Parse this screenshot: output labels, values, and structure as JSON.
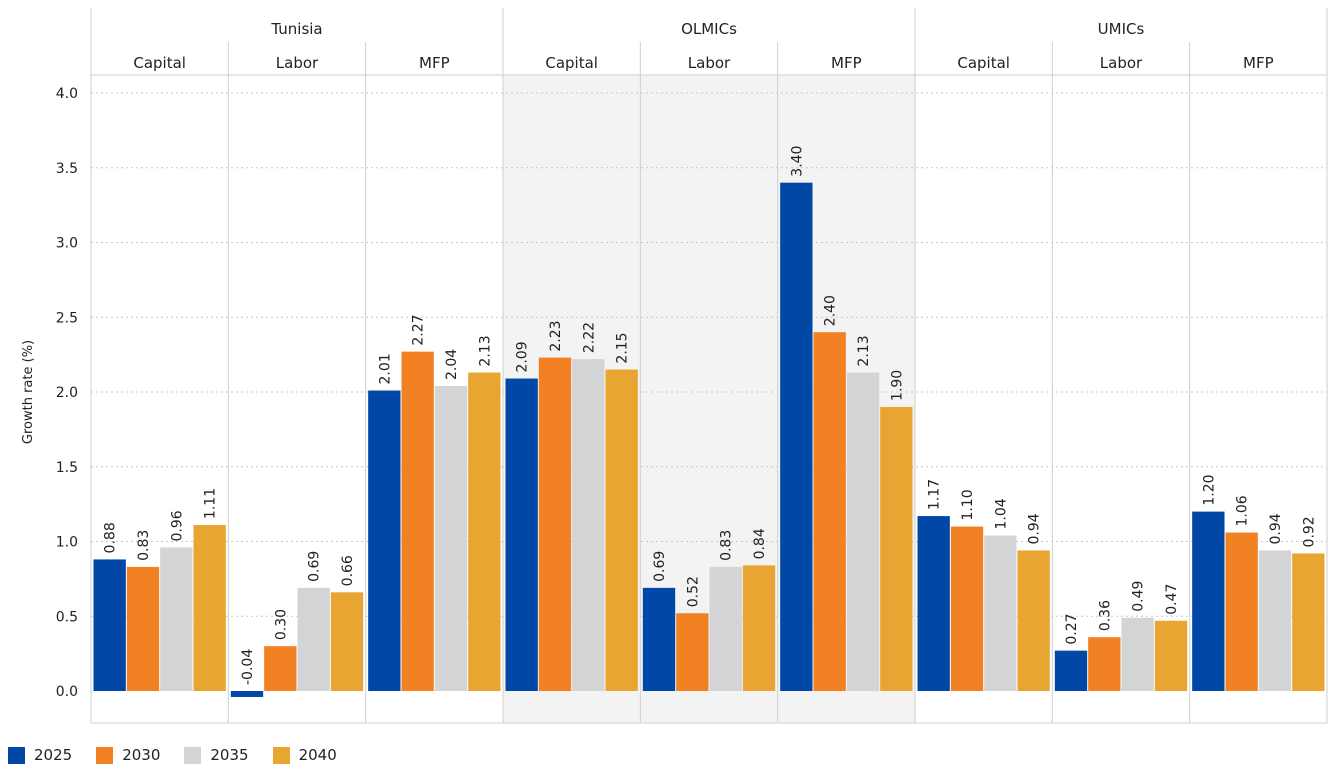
{
  "chart_data": {
    "type": "bar",
    "ylabel": "Growth rate (%)",
    "ylim": [
      0,
      4.0
    ],
    "yticks": [
      "0.0",
      "0.5",
      "1.0",
      "1.5",
      "2.0",
      "2.5",
      "3.0",
      "3.5",
      "4.0"
    ],
    "grid": true,
    "legend_placement": "bottom-left",
    "groups": [
      {
        "name": "Tunisia",
        "shaded": false,
        "categories": [
          {
            "name": "Capital",
            "values": [
              0.88,
              0.83,
              0.96,
              1.11
            ],
            "labels": [
              "0.88",
              "0.83",
              "0.96",
              "1.11"
            ]
          },
          {
            "name": "Labor",
            "values": [
              -0.04,
              0.3,
              0.69,
              0.66
            ],
            "labels": [
              "-0.04",
              "0.30",
              "0.69",
              "0.66"
            ]
          },
          {
            "name": "MFP",
            "values": [
              2.01,
              2.27,
              2.04,
              2.13
            ],
            "labels": [
              "2.01",
              "2.27",
              "2.04",
              "2.13"
            ]
          }
        ]
      },
      {
        "name": "OLMICs",
        "shaded": true,
        "categories": [
          {
            "name": "Capital",
            "values": [
              2.09,
              2.23,
              2.22,
              2.15
            ],
            "labels": [
              "2.09",
              "2.23",
              "2.22",
              "2.15"
            ]
          },
          {
            "name": "Labor",
            "values": [
              0.69,
              0.52,
              0.83,
              0.84
            ],
            "labels": [
              "0.69",
              "0.52",
              "0.83",
              "0.84"
            ]
          },
          {
            "name": "MFP",
            "values": [
              3.4,
              2.4,
              2.13,
              1.9
            ],
            "labels": [
              "3.40",
              "2.40",
              "2.13",
              "1.90"
            ]
          }
        ]
      },
      {
        "name": "UMICs",
        "shaded": false,
        "categories": [
          {
            "name": "Capital",
            "values": [
              1.17,
              1.1,
              1.04,
              0.94
            ],
            "labels": [
              "1.17",
              "1.10",
              "1.04",
              "0.94"
            ]
          },
          {
            "name": "Labor",
            "values": [
              0.27,
              0.36,
              0.49,
              0.47
            ],
            "labels": [
              "0.27",
              "0.36",
              "0.49",
              "0.47"
            ]
          },
          {
            "name": "MFP",
            "values": [
              1.2,
              1.06,
              0.94,
              0.92
            ],
            "labels": [
              "1.20",
              "1.06",
              "0.94",
              "0.92"
            ]
          }
        ]
      }
    ],
    "series": [
      {
        "name": "2025",
        "color": "#0047a6"
      },
      {
        "name": "2030",
        "color": "#f28124"
      },
      {
        "name": "2035",
        "color": "#d3d4d6"
      },
      {
        "name": "2040",
        "color": "#e8a532"
      }
    ]
  }
}
